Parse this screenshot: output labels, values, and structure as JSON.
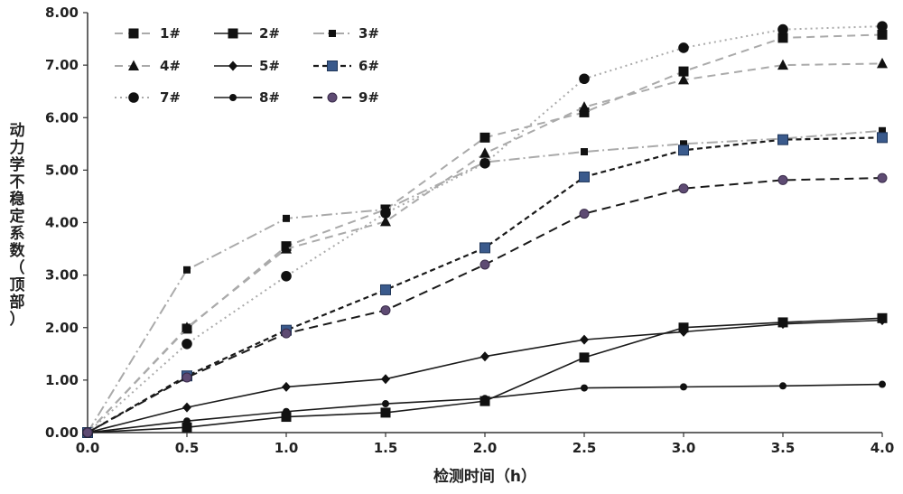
{
  "chart_data": {
    "type": "line",
    "xlabel": "检测时间（h）",
    "ylabel": "动力学不稳定系数（顶部）",
    "xlim": [
      0,
      4
    ],
    "ylim": [
      0,
      8
    ],
    "x_ticks": [
      "0.0",
      "0.5",
      "1.0",
      "1.5",
      "2.0",
      "2.5",
      "3.0",
      "3.5",
      "4.0"
    ],
    "y_ticks": [
      "0.00",
      "1.00",
      "2.00",
      "3.00",
      "4.00",
      "5.00",
      "6.00",
      "7.00",
      "8.00"
    ],
    "grid": false,
    "legend_position": "top-left",
    "x": [
      0,
      0.5,
      1.0,
      1.5,
      2.0,
      2.5,
      3.0,
      3.5,
      4.0
    ],
    "series": [
      {
        "name": "1#",
        "values": [
          0,
          1.98,
          3.55,
          4.25,
          5.62,
          6.1,
          6.88,
          7.52,
          7.58
        ],
        "color": "#aaaaaa",
        "dash": "9,6",
        "marker": "square",
        "width": 2
      },
      {
        "name": "2#",
        "values": [
          0,
          0.1,
          0.3,
          0.38,
          0.6,
          1.43,
          2.0,
          2.1,
          2.18
        ],
        "color": "#1a1a1a",
        "dash": "",
        "marker": "square",
        "width": 1.6
      },
      {
        "name": "3#",
        "values": [
          0,
          3.1,
          4.08,
          4.25,
          5.15,
          5.35,
          5.5,
          5.6,
          5.75
        ],
        "color": "#aaaaaa",
        "dash": "12,4,2,4",
        "marker": "small-square",
        "width": 2
      },
      {
        "name": "4#",
        "values": [
          0,
          2.0,
          3.5,
          4.02,
          5.32,
          6.2,
          6.72,
          7.0,
          7.03
        ],
        "color": "#aaaaaa",
        "dash": "9,6",
        "marker": "triangle",
        "width": 2
      },
      {
        "name": "5#",
        "values": [
          0,
          0.48,
          0.87,
          1.02,
          1.45,
          1.77,
          1.92,
          2.07,
          2.14
        ],
        "color": "#1a1a1a",
        "dash": "",
        "marker": "diamond",
        "width": 1.6
      },
      {
        "name": "6#",
        "values": [
          0,
          1.08,
          1.95,
          2.72,
          3.52,
          4.87,
          5.38,
          5.58,
          5.62
        ],
        "color": "#1a1a1a",
        "dash": "6,4",
        "marker": "blue-square",
        "width": 2.2
      },
      {
        "name": "7#",
        "values": [
          0,
          1.69,
          2.98,
          4.18,
          5.13,
          6.74,
          7.33,
          7.68,
          7.74
        ],
        "color": "#aaaaaa",
        "dash": "2,4",
        "marker": "circle",
        "width": 2
      },
      {
        "name": "8#",
        "values": [
          0,
          0.22,
          0.4,
          0.55,
          0.65,
          0.85,
          0.87,
          0.89,
          0.92
        ],
        "color": "#1a1a1a",
        "dash": "",
        "marker": "small-circle",
        "width": 1.6
      },
      {
        "name": "9#",
        "values": [
          0,
          1.05,
          1.89,
          2.33,
          3.2,
          4.17,
          4.65,
          4.81,
          4.85
        ],
        "color": "#1a1a1a",
        "dash": "10,6",
        "marker": "purple-circle",
        "width": 2
      }
    ]
  }
}
